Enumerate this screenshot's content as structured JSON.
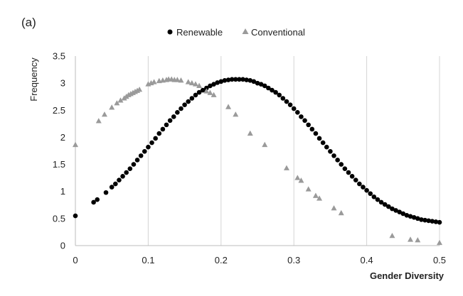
{
  "panel_label": "(a)",
  "chart_data": {
    "type": "scatter",
    "title": "",
    "xlabel": "Gender Diversity",
    "ylabel": "Frequency",
    "xlim": [
      0,
      0.5
    ],
    "ylim": [
      0,
      3.5
    ],
    "xticks": [
      0,
      0.1,
      0.2,
      0.3,
      0.4,
      0.5
    ],
    "yticks": [
      0,
      0.5,
      1,
      1.5,
      2,
      2.5,
      3,
      3.5
    ],
    "xtick_labels": [
      "0",
      "0.1",
      "0.2",
      "0.3",
      "0.4",
      "0.5"
    ],
    "ytick_labels": [
      "0",
      "0.5",
      "1",
      "1.5",
      "2",
      "2.5",
      "3",
      "3.5"
    ],
    "grid": "vertical",
    "legend_position": "top-center",
    "series": [
      {
        "name": "Renewable",
        "marker": "circle",
        "color": "#000000",
        "x": [
          0,
          0.025,
          0.03,
          0.042,
          0.05,
          0.055,
          0.06,
          0.065,
          0.07,
          0.075,
          0.08,
          0.085,
          0.09,
          0.095,
          0.1,
          0.105,
          0.11,
          0.115,
          0.12,
          0.125,
          0.13,
          0.135,
          0.14,
          0.145,
          0.15,
          0.155,
          0.16,
          0.165,
          0.17,
          0.175,
          0.18,
          0.185,
          0.19,
          0.195,
          0.2,
          0.205,
          0.21,
          0.215,
          0.22,
          0.225,
          0.23,
          0.235,
          0.24,
          0.245,
          0.25,
          0.255,
          0.26,
          0.265,
          0.27,
          0.275,
          0.28,
          0.285,
          0.29,
          0.295,
          0.3,
          0.305,
          0.31,
          0.315,
          0.32,
          0.325,
          0.33,
          0.335,
          0.34,
          0.345,
          0.35,
          0.355,
          0.36,
          0.365,
          0.37,
          0.375,
          0.38,
          0.385,
          0.39,
          0.395,
          0.4,
          0.405,
          0.41,
          0.415,
          0.42,
          0.425,
          0.43,
          0.435,
          0.44,
          0.445,
          0.45,
          0.455,
          0.46,
          0.465,
          0.47,
          0.475,
          0.48,
          0.485,
          0.49,
          0.495,
          0.5
        ],
        "y": [
          0.55,
          0.8,
          0.85,
          0.98,
          1.08,
          1.14,
          1.21,
          1.28,
          1.35,
          1.42,
          1.5,
          1.58,
          1.66,
          1.74,
          1.82,
          1.9,
          1.98,
          2.07,
          2.15,
          2.23,
          2.31,
          2.38,
          2.46,
          2.53,
          2.6,
          2.66,
          2.72,
          2.78,
          2.83,
          2.87,
          2.91,
          2.95,
          2.98,
          3.01,
          3.03,
          3.05,
          3.06,
          3.07,
          3.07,
          3.07,
          3.07,
          3.06,
          3.05,
          3.03,
          3.0,
          2.98,
          2.95,
          2.91,
          2.87,
          2.83,
          2.78,
          2.72,
          2.66,
          2.6,
          2.53,
          2.46,
          2.38,
          2.31,
          2.23,
          2.15,
          2.07,
          1.98,
          1.9,
          1.82,
          1.74,
          1.66,
          1.58,
          1.5,
          1.42,
          1.35,
          1.28,
          1.21,
          1.14,
          1.08,
          1.02,
          0.96,
          0.9,
          0.85,
          0.8,
          0.76,
          0.72,
          0.68,
          0.65,
          0.62,
          0.59,
          0.56,
          0.54,
          0.52,
          0.5,
          0.48,
          0.47,
          0.46,
          0.45,
          0.44,
          0.43
        ]
      },
      {
        "name": "Conventional",
        "marker": "triangle",
        "color": "#9a9a9a",
        "x": [
          0,
          0.032,
          0.04,
          0.05,
          0.057,
          0.062,
          0.067,
          0.07,
          0.073,
          0.076,
          0.079,
          0.082,
          0.085,
          0.088,
          0.1,
          0.104,
          0.108,
          0.115,
          0.12,
          0.125,
          0.128,
          0.132,
          0.136,
          0.14,
          0.145,
          0.155,
          0.16,
          0.165,
          0.17,
          0.18,
          0.185,
          0.19,
          0.21,
          0.22,
          0.24,
          0.26,
          0.29,
          0.305,
          0.31,
          0.32,
          0.33,
          0.335,
          0.355,
          0.365,
          0.435,
          0.46,
          0.47,
          0.5
        ],
        "y": [
          1.86,
          2.3,
          2.42,
          2.55,
          2.63,
          2.68,
          2.72,
          2.75,
          2.78,
          2.8,
          2.82,
          2.84,
          2.86,
          2.88,
          2.98,
          3.0,
          3.02,
          3.04,
          3.05,
          3.06,
          3.07,
          3.07,
          3.06,
          3.06,
          3.05,
          3.02,
          3.0,
          2.98,
          2.95,
          2.85,
          2.82,
          2.78,
          2.56,
          2.42,
          2.07,
          1.86,
          1.43,
          1.25,
          1.2,
          1.04,
          0.92,
          0.87,
          0.69,
          0.6,
          0.18,
          0.11,
          0.1,
          0.05
        ]
      }
    ]
  }
}
